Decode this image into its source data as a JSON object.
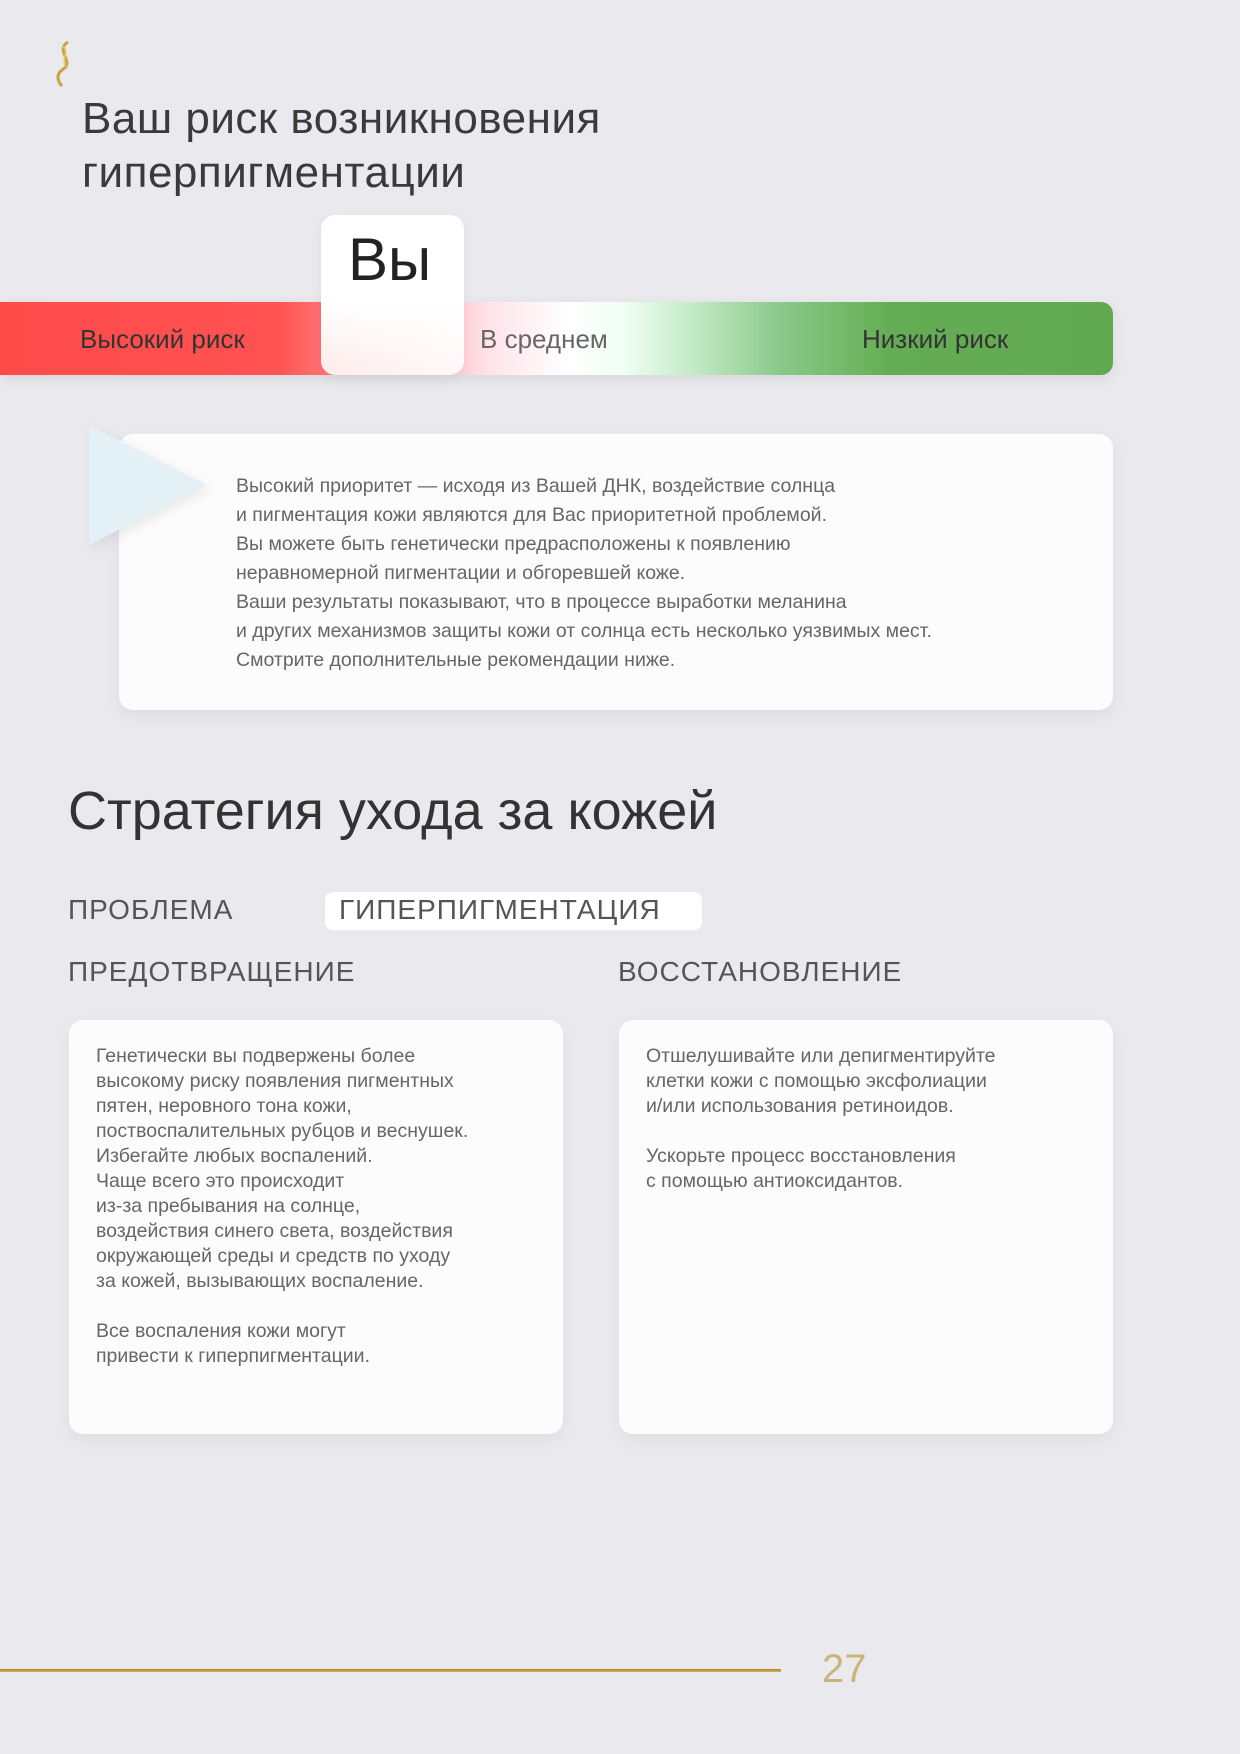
{
  "colors": {
    "high": "#ff4a4a",
    "low": "#62aa52",
    "gold": "#c9a43a",
    "background": "#eaeaee"
  },
  "logo": {
    "icon": "dna-helix-icon"
  },
  "title": [
    "Ваш риск возникновения",
    "гиперпигментации"
  ],
  "risk_scale": {
    "you_label": "Вы",
    "high": "Высокий риск",
    "average": "В среднем",
    "low": "Низкий риск",
    "you_position": "high"
  },
  "result_card": {
    "lines": [
      "Высокий приоритет — исходя из Вашей ДНК, воздействие солнца",
      "и пигментация кожи являются для Вас приоритетной проблемой.",
      "Вы можете быть генетически предрасположены к появлению",
      "неравномерной пигментации и обгоревшей коже.",
      "Ваши результаты показывают, что в процессе выработки меланина",
      "и других механизмов защиты кожи от солнца есть несколько уязвимых мест.",
      "Смотрите дополнительные рекомендации ниже."
    ]
  },
  "strategy": {
    "heading": "Стратегия ухода за кожей",
    "problem_label": "ПРОБЛЕМА",
    "problem_value": "ГИПЕРПИГМЕНТАЦИЯ",
    "prevention": {
      "label": "ПРЕДОТВРАЩЕНИЕ",
      "lines": [
        "Генетически вы подвержены более",
        "высокому риску появления пигментных",
        "пятен, неровного тона кожи,",
        "поствоспалительных рубцов и веснушек.",
        "Избегайте любых воспалений.",
        "Чаще всего это происходит",
        "из-за пребывания на солнце,",
        "воздействия синего света, воздействия",
        "окружающей среды и средств по уходу",
        "за кожей, вызывающих воспаление.",
        "",
        "Все воспаления кожи могут",
        "привести к гиперпигментации."
      ]
    },
    "recovery": {
      "label": "ВОССТАНОВЛЕНИЕ",
      "lines": [
        "Отшелушивайте или депигментируйте",
        "клетки кожи с помощью эксфолиации",
        "и/или использования ретиноидов.",
        "",
        "Ускорьте процесс восстановления",
        "с помощью антиоксидантов."
      ]
    }
  },
  "footer": {
    "page_number": "27"
  }
}
